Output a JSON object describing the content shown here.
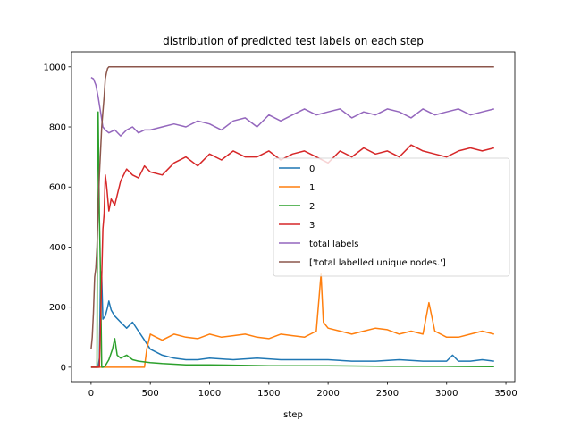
{
  "chart_data": {
    "type": "line",
    "title": "distribution of predicted test labels on each step",
    "xlabel": "step",
    "ylabel": "",
    "xlim": [
      -165,
      3575
    ],
    "ylim": [
      -48,
      1050
    ],
    "xticks": [
      0,
      500,
      1000,
      1500,
      2000,
      2500,
      3000,
      3500
    ],
    "yticks": [
      0,
      200,
      400,
      600,
      800,
      1000
    ],
    "xtick_labels": [
      "0",
      "500",
      "1000",
      "1500",
      "2000",
      "2500",
      "3000",
      "3500"
    ],
    "ytick_labels": [
      "0",
      "200",
      "400",
      "600",
      "800",
      "1000"
    ],
    "grid": false,
    "legend_position": "center-right",
    "series": [
      {
        "name": "0",
        "color": "#1f77b4",
        "x": [
          0,
          50,
          60,
          70,
          80,
          90,
          100,
          120,
          140,
          150,
          170,
          200,
          250,
          300,
          350,
          400,
          450,
          500,
          600,
          700,
          800,
          900,
          1000,
          1200,
          1400,
          1600,
          1800,
          2000,
          2200,
          2400,
          2600,
          2800,
          3000,
          3050,
          3100,
          3200,
          3300,
          3400
        ],
        "values": [
          0,
          0,
          0,
          30,
          320,
          300,
          160,
          170,
          200,
          220,
          190,
          170,
          150,
          130,
          150,
          120,
          90,
          60,
          40,
          30,
          25,
          25,
          30,
          25,
          30,
          25,
          25,
          25,
          20,
          20,
          25,
          20,
          20,
          40,
          20,
          20,
          25,
          20
        ]
      },
      {
        "name": "1",
        "color": "#ff7f0e",
        "x": [
          0,
          100,
          200,
          300,
          400,
          450,
          470,
          500,
          550,
          600,
          700,
          800,
          900,
          1000,
          1100,
          1200,
          1300,
          1400,
          1500,
          1600,
          1700,
          1800,
          1900,
          1940,
          1960,
          2000,
          2100,
          2200,
          2300,
          2400,
          2500,
          2600,
          2700,
          2800,
          2850,
          2900,
          3000,
          3100,
          3200,
          3300,
          3400
        ],
        "values": [
          0,
          0,
          0,
          0,
          0,
          0,
          60,
          110,
          100,
          90,
          110,
          100,
          95,
          110,
          100,
          105,
          110,
          100,
          95,
          110,
          105,
          100,
          120,
          310,
          150,
          130,
          120,
          110,
          120,
          130,
          125,
          110,
          120,
          110,
          215,
          120,
          100,
          100,
          110,
          120,
          110
        ]
      },
      {
        "name": "2",
        "color": "#2ca02c",
        "x": [
          0,
          50,
          55,
          60,
          70,
          80,
          90,
          100,
          120,
          150,
          180,
          200,
          220,
          250,
          300,
          350,
          400,
          500,
          600,
          800,
          1000,
          1500,
          2000,
          2500,
          3000,
          3400
        ],
        "values": [
          0,
          0,
          830,
          850,
          500,
          300,
          0,
          0,
          5,
          25,
          60,
          95,
          40,
          30,
          40,
          25,
          20,
          15,
          12,
          8,
          8,
          5,
          5,
          3,
          3,
          2
        ]
      },
      {
        "name": "3",
        "color": "#d62728",
        "x": [
          0,
          50,
          70,
          90,
          100,
          110,
          120,
          130,
          150,
          170,
          200,
          250,
          300,
          350,
          400,
          450,
          500,
          600,
          700,
          800,
          900,
          1000,
          1100,
          1200,
          1300,
          1400,
          1500,
          1600,
          1700,
          1800,
          1900,
          2000,
          2100,
          2200,
          2300,
          2400,
          2500,
          2600,
          2700,
          2800,
          2900,
          3000,
          3100,
          3200,
          3300,
          3400
        ],
        "values": [
          0,
          0,
          0,
          300,
          460,
          510,
          640,
          610,
          520,
          560,
          540,
          620,
          660,
          640,
          630,
          670,
          650,
          640,
          680,
          700,
          670,
          710,
          690,
          720,
          700,
          700,
          720,
          690,
          710,
          720,
          700,
          680,
          720,
          700,
          730,
          710,
          720,
          700,
          740,
          720,
          710,
          700,
          720,
          730,
          720,
          730
        ]
      },
      {
        "name": "total labels",
        "color": "#9467bd",
        "x": [
          0,
          20,
          40,
          60,
          80,
          100,
          120,
          150,
          200,
          250,
          300,
          350,
          400,
          450,
          500,
          600,
          700,
          800,
          900,
          1000,
          1100,
          1200,
          1300,
          1400,
          1500,
          1600,
          1700,
          1800,
          1900,
          2000,
          2100,
          2200,
          2300,
          2400,
          2500,
          2600,
          2700,
          2800,
          2900,
          3000,
          3100,
          3200,
          3300,
          3400
        ],
        "values": [
          965,
          960,
          940,
          900,
          850,
          800,
          790,
          780,
          790,
          770,
          790,
          800,
          780,
          790,
          790,
          800,
          810,
          800,
          820,
          810,
          790,
          820,
          830,
          800,
          840,
          820,
          840,
          860,
          840,
          850,
          860,
          830,
          850,
          840,
          860,
          850,
          830,
          860,
          840,
          850,
          860,
          840,
          850,
          860
        ]
      },
      {
        "name": "['total labelled unique nodes.']",
        "color": "#8c564b",
        "x": [
          0,
          10,
          20,
          30,
          40,
          50,
          60,
          70,
          80,
          90,
          100,
          110,
          120,
          130,
          140,
          150,
          200,
          500,
          1000,
          1500,
          2000,
          2500,
          3000,
          3400
        ],
        "values": [
          60,
          100,
          180,
          300,
          330,
          400,
          520,
          640,
          720,
          800,
          850,
          900,
          960,
          980,
          995,
          1000,
          1000,
          1000,
          1000,
          1000,
          1000,
          1000,
          1000,
          1000
        ]
      }
    ]
  }
}
